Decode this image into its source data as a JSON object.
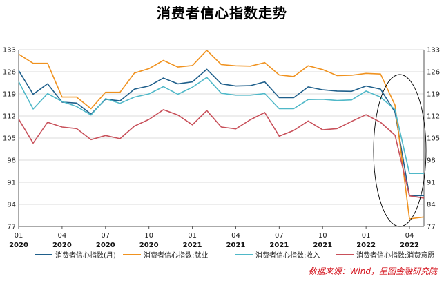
{
  "chart_data": {
    "type": "line",
    "title": "消费者信心指数走势",
    "source": "数据来源：Wind，星图金融研究院",
    "ylim": [
      77,
      133
    ],
    "yticks": [
      77,
      84,
      91,
      98,
      105,
      112,
      119,
      126,
      133
    ],
    "x_tick_labels": [
      {
        "month": "01",
        "year": "2020"
      },
      {
        "month": "04",
        "year": "2020"
      },
      {
        "month": "07",
        "year": "2020"
      },
      {
        "month": "10",
        "year": "2020"
      },
      {
        "month": "01",
        "year": "2021"
      },
      {
        "month": "04",
        "year": "2021"
      },
      {
        "month": "07",
        "year": "2021"
      },
      {
        "month": "10",
        "year": "2021"
      },
      {
        "month": "01",
        "year": "2022"
      },
      {
        "month": "04",
        "year": "2022"
      }
    ],
    "series": [
      {
        "name": "消费者信心指数(月)",
        "color": "#1f5f8b",
        "values": [
          126.4,
          118.9,
          122.2,
          116.4,
          116.1,
          112.6,
          117.3,
          116.8,
          120.5,
          121.5,
          124.0,
          122.2,
          122.8,
          126.8,
          122.2,
          121.5,
          121.6,
          122.8,
          117.8,
          117.8,
          121.2,
          120.3,
          119.9,
          119.8,
          121.5,
          120.5,
          113.2,
          86.7,
          86.8
        ]
      },
      {
        "name": "消费者信心指数:就业",
        "color": "#f0921f",
        "values": [
          131.6,
          128.7,
          128.7,
          118.0,
          118.0,
          114.3,
          119.5,
          119.5,
          125.6,
          127.0,
          129.6,
          127.5,
          128.0,
          132.8,
          128.3,
          127.9,
          127.8,
          128.9,
          125.0,
          124.5,
          127.9,
          126.7,
          124.8,
          124.9,
          125.5,
          125.3,
          115.4,
          79.4,
          80.0
        ]
      },
      {
        "name": "消费者信心指数:收入",
        "color": "#4fb8c8",
        "values": [
          122.9,
          114.2,
          119.1,
          116.6,
          115.0,
          112.3,
          117.5,
          116.0,
          118.0,
          119.0,
          121.3,
          118.9,
          121.1,
          124.2,
          119.2,
          118.6,
          118.6,
          119.1,
          114.3,
          114.3,
          117.2,
          117.3,
          116.9,
          117.1,
          119.9,
          118.0,
          114.0,
          93.8,
          93.8
        ]
      },
      {
        "name": "消费者信心指数:消费意愿",
        "color": "#c8505a",
        "values": [
          111.0,
          103.4,
          110.0,
          108.5,
          108.0,
          104.5,
          105.8,
          104.8,
          108.8,
          110.9,
          114.0,
          112.3,
          109.2,
          113.7,
          108.5,
          107.9,
          110.8,
          113.1,
          105.6,
          107.4,
          110.4,
          107.6,
          108.0,
          110.3,
          112.4,
          110.0,
          105.9,
          86.7,
          86.0
        ]
      }
    ]
  }
}
